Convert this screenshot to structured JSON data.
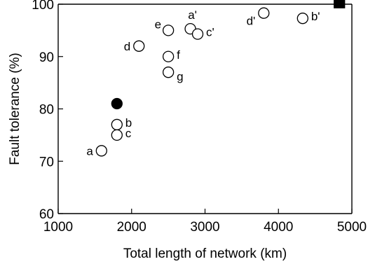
{
  "chart_data": {
    "type": "scatter",
    "xlabel": "Total length of network (km)",
    "ylabel": "Fault tolerance (%)",
    "xlim": [
      1000,
      5000
    ],
    "ylim": [
      60,
      100
    ],
    "xticks": [
      1000,
      2000,
      3000,
      4000,
      5000
    ],
    "yticks": [
      60,
      70,
      80,
      90,
      100
    ],
    "xtick_labels": [
      "1000",
      "2000",
      "3000",
      "4000",
      "5000"
    ],
    "ytick_labels": [
      "60",
      "70",
      "80",
      "90",
      "100"
    ],
    "grid": false,
    "legend": "none",
    "points": [
      {
        "label": "a",
        "x": 1590,
        "y": 72,
        "marker": "open-circle",
        "label_side": "left"
      },
      {
        "label": "b",
        "x": 1800,
        "y": 77,
        "marker": "open-circle",
        "label_side": "right"
      },
      {
        "label": "c",
        "x": 1800,
        "y": 75,
        "marker": "open-circle",
        "label_side": "right"
      },
      {
        "label": "d",
        "x": 2100,
        "y": 92,
        "marker": "open-circle",
        "label_side": "left"
      },
      {
        "label": "e",
        "x": 2500,
        "y": 95,
        "marker": "open-circle",
        "label_side": "upper-left"
      },
      {
        "label": "f",
        "x": 2500,
        "y": 90,
        "marker": "open-circle",
        "label_side": "right"
      },
      {
        "label": "g",
        "x": 2500,
        "y": 87,
        "marker": "open-circle",
        "label_side": "lower-right"
      },
      {
        "label": "a'",
        "x": 2800,
        "y": 95.3,
        "marker": "open-circle",
        "label_side": "above"
      },
      {
        "label": "c'",
        "x": 2900,
        "y": 94.3,
        "marker": "open-circle",
        "label_side": "right"
      },
      {
        "label": "d'",
        "x": 3800,
        "y": 98.3,
        "marker": "open-circle",
        "label_side": "lower-left"
      },
      {
        "label": "b'",
        "x": 4330,
        "y": 97.3,
        "marker": "open-circle",
        "label_side": "right"
      },
      {
        "label": "",
        "x": 1800,
        "y": 81,
        "marker": "filled-circle",
        "label_side": "none"
      },
      {
        "label": "",
        "x": 4830,
        "y": 100.3,
        "marker": "filled-square",
        "label_side": "none"
      }
    ]
  }
}
